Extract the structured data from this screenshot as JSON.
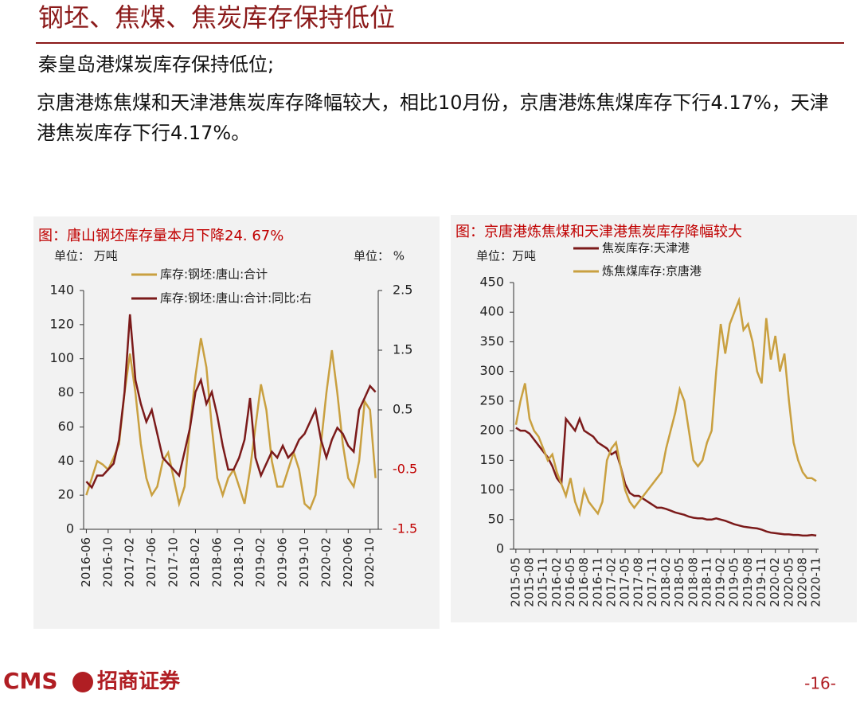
{
  "header": {
    "title": "钢坯、焦煤、焦炭库存保持低位"
  },
  "bullets": [
    "秦皇岛港煤炭库存保持低位;",
    "京唐港炼焦煤和天津港焦炭库存降幅较大，相比10月份，京唐港炼焦煤库存下行4.17%，天津港焦炭库存下行4.17%。"
  ],
  "footer": {
    "logo": "CMS",
    "company": "招商证券",
    "page": "-16-"
  },
  "chart_data": [
    {
      "type": "line",
      "title": "图：唐山钢坯库存量本月下降24. 67%",
      "y_unit": "单位： 万吨",
      "y2_unit": "单位： %",
      "categories": [
        "2016-06",
        null,
        null,
        null,
        "2016-10",
        null,
        null,
        null,
        "2017-02",
        null,
        null,
        null,
        "2017-06",
        null,
        null,
        null,
        "2017-10",
        null,
        null,
        null,
        "2018-02",
        null,
        null,
        null,
        "2018-06",
        null,
        null,
        null,
        "2018-10",
        null,
        null,
        null,
        "2019-02",
        null,
        null,
        null,
        "2019-06",
        null,
        null,
        null,
        "2019-10",
        null,
        null,
        null,
        "2020-02",
        null,
        null,
        null,
        "2020-06",
        null,
        null,
        null,
        "2020-10",
        null
      ],
      "series": [
        {
          "name": "库存:钢坯:唐山:合计",
          "color": "#c9a040",
          "values": [
            20,
            30,
            40,
            38,
            35,
            42,
            50,
            80,
            103,
            80,
            50,
            30,
            20,
            25,
            40,
            45,
            30,
            15,
            25,
            60,
            90,
            112,
            95,
            60,
            30,
            20,
            30,
            35,
            25,
            15,
            35,
            60,
            85,
            70,
            40,
            25,
            25,
            35,
            45,
            35,
            15,
            12,
            20,
            50,
            80,
            105,
            80,
            50,
            30,
            25,
            40,
            75,
            70,
            30
          ]
        },
        {
          "name": "库存:钢坯:唐山:合计:同比:右",
          "color": "#7b1a1a",
          "axis": "y2",
          "values": [
            -0.7,
            -0.8,
            -0.6,
            -0.6,
            -0.5,
            -0.4,
            0.0,
            0.8,
            2.1,
            1.0,
            0.6,
            0.3,
            0.5,
            0.1,
            -0.3,
            -0.4,
            -0.5,
            -0.6,
            -0.2,
            0.2,
            0.8,
            1.0,
            0.6,
            0.8,
            0.4,
            -0.1,
            -0.5,
            -0.5,
            -0.3,
            0.0,
            0.7,
            -0.3,
            -0.6,
            -0.4,
            -0.2,
            -0.3,
            -0.1,
            -0.3,
            -0.2,
            0.0,
            0.1,
            0.3,
            0.5,
            0.0,
            -0.3,
            0.0,
            0.2,
            0.1,
            -0.1,
            -0.2,
            0.5,
            0.7,
            0.9,
            0.8
          ]
        }
      ],
      "ylim": [
        0,
        140
      ],
      "yticks": [
        0,
        20,
        40,
        60,
        80,
        100,
        120,
        140
      ],
      "y2lim": [
        -1.5,
        2.5
      ],
      "y2ticks": [
        -1.5,
        -0.5,
        0.5,
        1.5,
        2.5
      ],
      "y2_negative_tick_color": "#c00000"
    },
    {
      "type": "line",
      "title": "图：京唐港炼焦煤和天津港焦炭库存降幅较大",
      "y_unit": "单位：万吨",
      "categories": [
        "2015-05",
        null,
        null,
        "2015-08",
        null,
        null,
        "2015-11",
        null,
        null,
        "2016-02",
        null,
        null,
        "2016-05",
        null,
        null,
        "2016-08",
        null,
        null,
        "2016-11",
        null,
        null,
        "2017-02",
        null,
        null,
        "2017-05",
        null,
        null,
        "2017-08",
        null,
        null,
        "2017-11",
        null,
        null,
        "2018-02",
        null,
        null,
        "2018-05",
        null,
        null,
        "2018-08",
        null,
        null,
        "2018-11",
        null,
        null,
        "2019-02",
        null,
        null,
        "2019-05",
        null,
        null,
        "2019-08",
        null,
        null,
        "2019-11",
        null,
        null,
        "2020-02",
        null,
        null,
        "2020-05",
        null,
        null,
        "2020-08",
        null,
        null,
        "2020-11"
      ],
      "series": [
        {
          "name": "焦炭库存:天津港",
          "color": "#7b1a1a",
          "values": [
            205,
            200,
            200,
            195,
            185,
            175,
            165,
            155,
            140,
            120,
            110,
            220,
            210,
            200,
            220,
            200,
            195,
            190,
            180,
            175,
            170,
            160,
            165,
            140,
            110,
            95,
            90,
            90,
            85,
            80,
            75,
            70,
            70,
            68,
            65,
            62,
            60,
            58,
            55,
            53,
            52,
            52,
            50,
            50,
            52,
            50,
            48,
            45,
            42,
            40,
            38,
            37,
            36,
            35,
            33,
            30,
            28,
            27,
            26,
            25,
            25,
            24,
            24,
            23,
            23,
            24,
            23
          ]
        },
        {
          "name": "炼焦煤库存:京唐港",
          "color": "#c9a040",
          "values": [
            210,
            250,
            280,
            220,
            200,
            190,
            170,
            150,
            160,
            130,
            110,
            90,
            120,
            80,
            60,
            100,
            80,
            70,
            60,
            80,
            150,
            170,
            180,
            140,
            100,
            80,
            70,
            80,
            90,
            100,
            110,
            120,
            130,
            170,
            200,
            230,
            270,
            250,
            200,
            150,
            140,
            150,
            180,
            200,
            300,
            380,
            330,
            380,
            400,
            420,
            370,
            380,
            350,
            300,
            280,
            390,
            320,
            360,
            300,
            330,
            250,
            180,
            150,
            130,
            120,
            120,
            115
          ]
        }
      ],
      "ylim": [
        0,
        450
      ],
      "yticks": [
        0,
        50,
        100,
        150,
        200,
        250,
        300,
        350,
        400,
        450
      ]
    }
  ]
}
